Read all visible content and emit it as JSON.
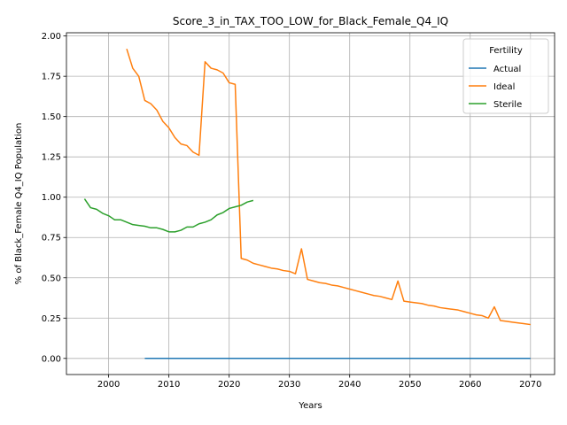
{
  "chart_data": {
    "type": "line",
    "title": "Score_3_in_TAX_TOO_LOW_for_Black_Female_Q4_IQ",
    "xlabel": "Years",
    "ylabel": "% of Black_Female Q4_IQ Population",
    "xlim": [
      1993,
      2074
    ],
    "ylim": [
      -0.1,
      2.02
    ],
    "xticks": [
      2000,
      2010,
      2020,
      2030,
      2040,
      2050,
      2060,
      2070
    ],
    "yticks": [
      0.0,
      0.25,
      0.5,
      0.75,
      1.0,
      1.25,
      1.5,
      1.75,
      2.0
    ],
    "xtick_labels": [
      "2000",
      "2010",
      "2020",
      "2030",
      "2040",
      "2050",
      "2060",
      "2070"
    ],
    "ytick_labels": [
      "0.00",
      "0.25",
      "0.50",
      "0.75",
      "1.00",
      "1.25",
      "1.50",
      "1.75",
      "2.00"
    ],
    "grid": true,
    "legend": {
      "title": "Fertility",
      "placement": "top-right"
    },
    "series": [
      {
        "name": "Actual",
        "color": "#1f77b4",
        "x": [
          2006,
          2070
        ],
        "y": [
          0.0,
          0.0
        ]
      },
      {
        "name": "Ideal",
        "color": "#ff7f0e",
        "x": [
          2003,
          2004,
          2005,
          2006,
          2007,
          2008,
          2009,
          2010,
          2011,
          2012,
          2013,
          2014,
          2015,
          2016,
          2017,
          2018,
          2019,
          2020,
          2021,
          2022,
          2023,
          2024,
          2025,
          2026,
          2027,
          2028,
          2029,
          2030,
          2031,
          2032,
          2033,
          2034,
          2035,
          2036,
          2037,
          2038,
          2039,
          2040,
          2041,
          2042,
          2043,
          2044,
          2045,
          2046,
          2047,
          2048,
          2049,
          2050,
          2051,
          2052,
          2053,
          2054,
          2055,
          2056,
          2057,
          2058,
          2059,
          2060,
          2061,
          2062,
          2063,
          2064,
          2065,
          2066,
          2067,
          2068,
          2069,
          2070
        ],
        "y": [
          1.92,
          1.8,
          1.75,
          1.6,
          1.58,
          1.54,
          1.47,
          1.43,
          1.37,
          1.33,
          1.32,
          1.28,
          1.26,
          1.84,
          1.8,
          1.79,
          1.77,
          1.71,
          1.7,
          0.62,
          0.61,
          0.59,
          0.58,
          0.57,
          0.56,
          0.555,
          0.545,
          0.54,
          0.525,
          0.68,
          0.49,
          0.48,
          0.47,
          0.465,
          0.455,
          0.45,
          0.44,
          0.43,
          0.42,
          0.41,
          0.4,
          0.39,
          0.385,
          0.375,
          0.365,
          0.48,
          0.355,
          0.35,
          0.345,
          0.34,
          0.33,
          0.325,
          0.315,
          0.31,
          0.305,
          0.3,
          0.29,
          0.28,
          0.27,
          0.265,
          0.25,
          0.32,
          0.235,
          0.23,
          0.225,
          0.22,
          0.215,
          0.21
        ]
      },
      {
        "name": "Sterile",
        "color": "#2ca02c",
        "x": [
          1996,
          1997,
          1998,
          1999,
          2000,
          2001,
          2002,
          2003,
          2004,
          2005,
          2006,
          2007,
          2008,
          2009,
          2010,
          2011,
          2012,
          2013,
          2014,
          2015,
          2016,
          2017,
          2018,
          2019,
          2020,
          2021,
          2022,
          2023,
          2024
        ],
        "y": [
          0.99,
          0.935,
          0.925,
          0.9,
          0.885,
          0.86,
          0.86,
          0.845,
          0.83,
          0.825,
          0.82,
          0.81,
          0.81,
          0.8,
          0.785,
          0.785,
          0.795,
          0.815,
          0.815,
          0.835,
          0.845,
          0.86,
          0.89,
          0.905,
          0.93,
          0.94,
          0.95,
          0.97,
          0.98
        ]
      }
    ]
  }
}
